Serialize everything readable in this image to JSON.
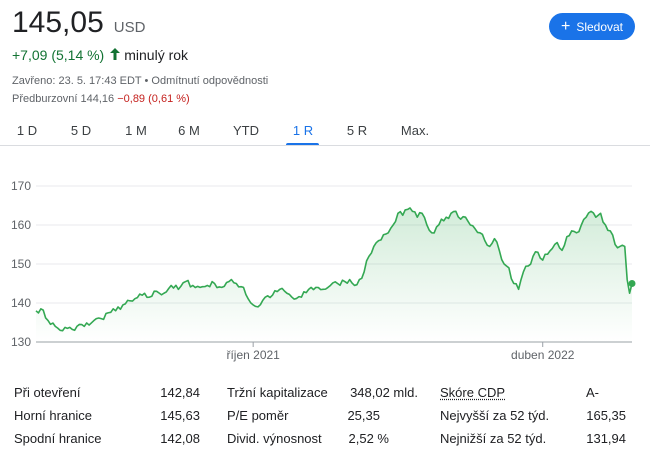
{
  "quote": {
    "price": "145,05",
    "currency": "USD",
    "change": "+7,09 (5,14 %)",
    "change_arrow": "arrow-up-icon",
    "change_period": "minulý rok",
    "closed_text": "Zavřeno: 23. 5. 17:43 EDT",
    "disclaimer": "Odmítnutí odpovědnosti",
    "premarket_label": "Předburzovní",
    "premarket_price": "144,16",
    "premarket_change": "−0,89 (0,61 %)",
    "accent_up": "#137333",
    "accent_down": "#c5221f"
  },
  "follow_button": {
    "label": "Sledovat",
    "icon": "plus-icon",
    "color": "#1a73e8"
  },
  "tabs": [
    {
      "label": "1 D"
    },
    {
      "label": "5 D"
    },
    {
      "label": "1 M"
    },
    {
      "label": "6 M"
    },
    {
      "label": "YTD"
    },
    {
      "label": "1 R",
      "active": true
    },
    {
      "label": "5 R"
    },
    {
      "label": "Max."
    }
  ],
  "chart_data": {
    "type": "area",
    "ylim": [
      130,
      170
    ],
    "yticks": [
      130,
      140,
      150,
      160,
      170
    ],
    "xticks": [
      {
        "label": "říjen 2021",
        "index": 90
      },
      {
        "label": "duben 2022",
        "index": 210
      }
    ],
    "line_color": "#34a853",
    "grid": true,
    "x_count": 248,
    "anchors": [
      [
        0,
        138
      ],
      [
        2,
        138.5
      ],
      [
        5,
        135.5
      ],
      [
        8,
        134
      ],
      [
        10,
        133
      ],
      [
        13,
        133.5
      ],
      [
        16,
        133
      ],
      [
        18,
        134.5
      ],
      [
        20,
        134
      ],
      [
        24,
        135.5
      ],
      [
        27,
        136
      ],
      [
        30,
        137.5
      ],
      [
        33,
        138
      ],
      [
        36,
        139.5
      ],
      [
        40,
        140.5
      ],
      [
        44,
        142
      ],
      [
        47,
        141.5
      ],
      [
        50,
        143
      ],
      [
        53,
        142.5
      ],
      [
        56,
        144.5
      ],
      [
        59,
        143.5
      ],
      [
        62,
        145.5
      ],
      [
        65,
        144.5
      ],
      [
        68,
        144
      ],
      [
        71,
        144.5
      ],
      [
        74,
        145
      ],
      [
        77,
        144
      ],
      [
        80,
        145.5
      ],
      [
        83,
        145
      ],
      [
        86,
        144
      ],
      [
        88,
        141
      ],
      [
        90,
        139.5
      ],
      [
        92,
        139
      ],
      [
        95,
        141.5
      ],
      [
        98,
        142
      ],
      [
        101,
        143.5
      ],
      [
        104,
        142.5
      ],
      [
        107,
        141
      ],
      [
        110,
        141.5
      ],
      [
        113,
        143.5
      ],
      [
        116,
        144
      ],
      [
        119,
        143.5
      ],
      [
        122,
        144.5
      ],
      [
        125,
        145
      ],
      [
        128,
        145.5
      ],
      [
        130,
        146
      ],
      [
        132,
        144.5
      ],
      [
        134,
        146
      ],
      [
        136,
        148
      ],
      [
        138,
        152
      ],
      [
        140,
        154.5
      ],
      [
        142,
        156
      ],
      [
        144,
        157.5
      ],
      [
        146,
        158
      ],
      [
        148,
        160
      ],
      [
        150,
        163
      ],
      [
        152,
        162.5
      ],
      [
        154,
        164
      ],
      [
        156,
        163.5
      ],
      [
        158,
        162
      ],
      [
        160,
        163
      ],
      [
        162,
        160
      ],
      [
        164,
        158
      ],
      [
        166,
        159.5
      ],
      [
        168,
        161.5
      ],
      [
        170,
        162
      ],
      [
        172,
        163
      ],
      [
        174,
        163.5
      ],
      [
        176,
        161.5
      ],
      [
        178,
        162
      ],
      [
        180,
        160
      ],
      [
        182,
        159
      ],
      [
        184,
        158
      ],
      [
        186,
        156
      ],
      [
        188,
        154.5
      ],
      [
        190,
        156.5
      ],
      [
        192,
        153.5
      ],
      [
        194,
        150
      ],
      [
        196,
        149
      ],
      [
        198,
        145
      ],
      [
        200,
        143.5
      ],
      [
        202,
        148
      ],
      [
        204,
        149.5
      ],
      [
        206,
        152
      ],
      [
        208,
        153
      ],
      [
        210,
        151
      ],
      [
        212,
        152.5
      ],
      [
        214,
        154
      ],
      [
        216,
        155.5
      ],
      [
        218,
        153.5
      ],
      [
        220,
        157
      ],
      [
        222,
        158.5
      ],
      [
        224,
        158
      ],
      [
        226,
        160
      ],
      [
        228,
        162
      ],
      [
        230,
        163.5
      ],
      [
        232,
        162
      ],
      [
        234,
        163
      ],
      [
        236,
        160
      ],
      [
        238,
        158.5
      ],
      [
        240,
        155
      ],
      [
        242,
        154.5
      ],
      [
        244,
        154.5
      ],
      [
        245,
        146
      ],
      [
        246,
        142.5
      ],
      [
        247,
        145
      ]
    ]
  },
  "stats": {
    "col1": [
      {
        "label": "Při otevření",
        "value": "142,84"
      },
      {
        "label": "Horní hranice",
        "value": "145,63"
      },
      {
        "label": "Spodní hranice",
        "value": "142,08"
      }
    ],
    "col2": [
      {
        "label": "Tržní kapitalizace",
        "value": "348,02 mld."
      },
      {
        "label": "P/E poměr",
        "value": "25,35"
      },
      {
        "label": "Divid. výnosnost",
        "value": "2,52 %"
      }
    ],
    "col3": [
      {
        "label": "Skóre CDP",
        "value": "A-"
      },
      {
        "label": "Nejvyšší za 52 týd.",
        "value": "165,35"
      },
      {
        "label": "Nejnižší za 52 týd.",
        "value": "131,94"
      }
    ]
  }
}
